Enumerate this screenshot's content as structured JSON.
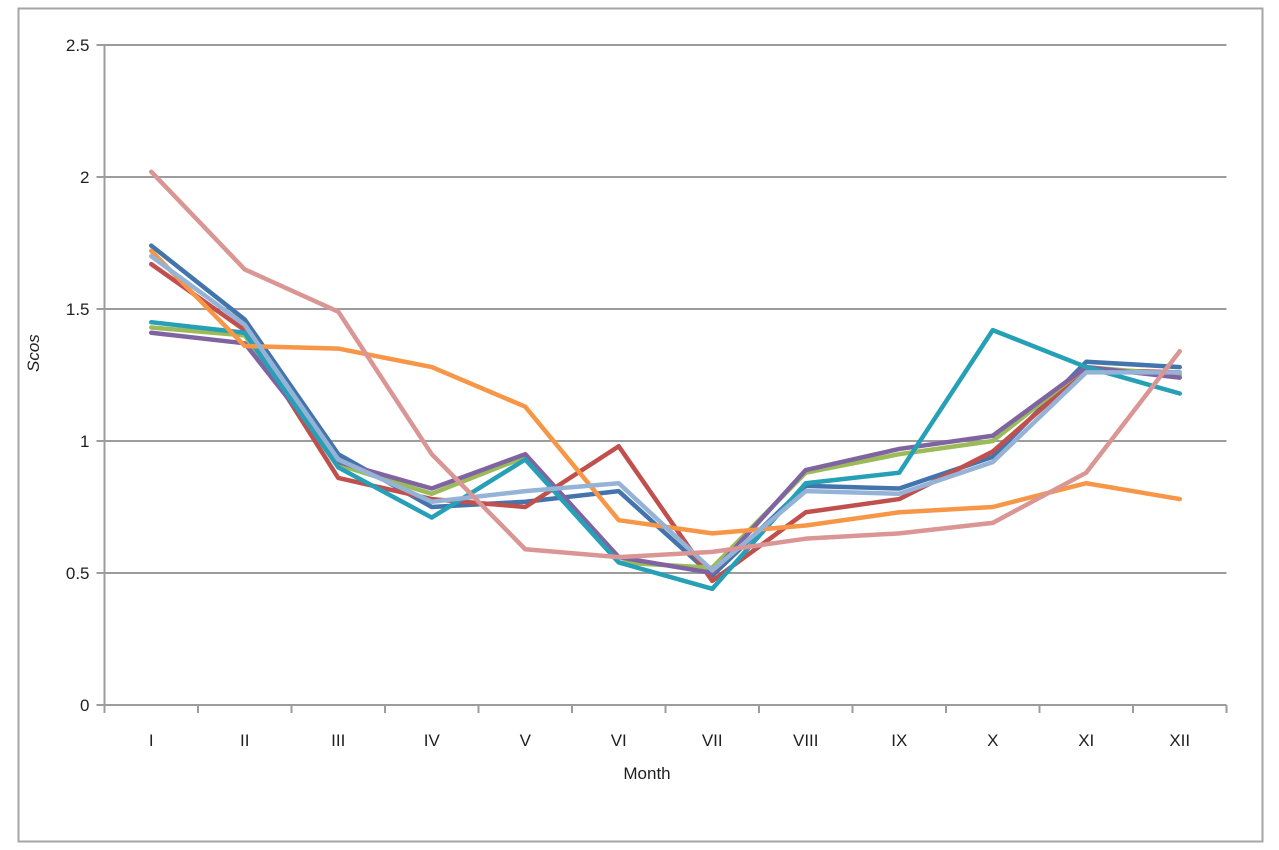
{
  "axis": {
    "x_title": "Month",
    "y_title": "Scos"
  },
  "colors": {
    "gridline": "#9C9C9C",
    "axis_line": "#9C9C9C",
    "chart_border": "#A6A6A6",
    "tick_label": "#212121",
    "background": "#FFFFFF"
  },
  "chart_data": {
    "type": "line",
    "title": "",
    "xlabel": "Month",
    "ylabel": "Scos",
    "x_categories": [
      "I",
      "II",
      "III",
      "IV",
      "V",
      "VI",
      "VII",
      "VIII",
      "IX",
      "X",
      "XI",
      "XII"
    ],
    "ytick_labels": [
      "0",
      "0.5",
      "1",
      "1.5",
      "2",
      "2.5"
    ],
    "ylim": [
      0,
      2.5
    ],
    "ytick_step": 0.5,
    "grid": true,
    "legend_position": "none",
    "series": [
      {
        "name": "blue",
        "color": "#4474AC",
        "values": [
          1.74,
          1.46,
          0.95,
          0.75,
          0.77,
          0.81,
          0.49,
          0.83,
          0.82,
          0.94,
          1.3,
          1.28
        ]
      },
      {
        "name": "red",
        "color": "#C0504D",
        "values": [
          1.67,
          1.42,
          0.86,
          0.78,
          0.75,
          0.98,
          0.47,
          0.73,
          0.78,
          0.96,
          1.27,
          1.26
        ]
      },
      {
        "name": "green",
        "color": "#9BBB59",
        "values": [
          1.43,
          1.4,
          0.91,
          0.8,
          0.94,
          0.54,
          0.52,
          0.88,
          0.95,
          1.0,
          1.28,
          1.25
        ]
      },
      {
        "name": "purple",
        "color": "#8064A2",
        "values": [
          1.41,
          1.37,
          0.92,
          0.82,
          0.95,
          0.56,
          0.5,
          0.89,
          0.97,
          1.02,
          1.28,
          1.24
        ]
      },
      {
        "name": "teal",
        "color": "#26A0B6",
        "values": [
          1.45,
          1.41,
          0.9,
          0.71,
          0.93,
          0.54,
          0.44,
          0.84,
          0.88,
          1.42,
          1.28,
          1.18
        ]
      },
      {
        "name": "orange",
        "color": "#F79646",
        "values": [
          1.72,
          1.36,
          1.35,
          1.28,
          1.13,
          0.7,
          0.65,
          0.68,
          0.73,
          0.75,
          0.84,
          0.78
        ]
      },
      {
        "name": "light-blue",
        "color": "#95B3D7",
        "values": [
          1.7,
          1.44,
          0.93,
          0.77,
          0.81,
          0.84,
          0.51,
          0.81,
          0.8,
          0.92,
          1.26,
          1.26
        ]
      },
      {
        "name": "pink",
        "color": "#D99694",
        "values": [
          2.02,
          1.65,
          1.49,
          0.95,
          0.59,
          0.56,
          0.58,
          0.63,
          0.65,
          0.69,
          0.88,
          1.34
        ]
      }
    ]
  }
}
